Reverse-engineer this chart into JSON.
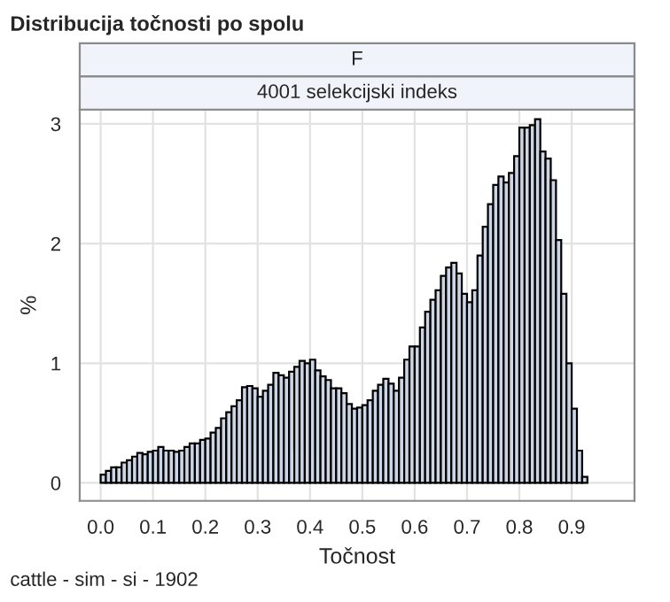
{
  "chart_data": {
    "type": "histogram",
    "title": "Distribucija točnosti po spolu",
    "xlabel": "Točnost",
    "ylabel": "%",
    "annotations": [
      "F",
      "4001 selekcijski indeks",
      "cattle - sim - si - 1902"
    ],
    "bins": [
      0.0,
      0.01,
      0.02,
      0.03,
      0.04,
      0.05,
      0.06,
      0.07,
      0.08,
      0.09,
      0.1,
      0.11,
      0.12,
      0.13,
      0.14,
      0.15,
      0.16,
      0.17,
      0.18,
      0.19,
      0.2,
      0.21,
      0.22,
      0.23,
      0.24,
      0.25,
      0.26,
      0.27,
      0.28,
      0.29,
      0.3,
      0.31,
      0.32,
      0.33,
      0.34,
      0.35,
      0.36,
      0.37,
      0.38,
      0.39,
      0.4,
      0.41,
      0.42,
      0.43,
      0.44,
      0.45,
      0.46,
      0.47,
      0.48,
      0.49,
      0.5,
      0.51,
      0.52,
      0.53,
      0.54,
      0.55,
      0.56,
      0.57,
      0.58,
      0.59,
      0.6,
      0.61,
      0.62,
      0.63,
      0.64,
      0.65,
      0.66,
      0.67,
      0.68,
      0.69,
      0.7,
      0.71,
      0.72,
      0.73,
      0.74,
      0.75,
      0.76,
      0.77,
      0.78,
      0.79,
      0.8,
      0.81,
      0.82,
      0.83,
      0.84,
      0.85,
      0.86,
      0.87,
      0.88,
      0.89,
      0.9,
      0.91,
      0.92,
      0.93
    ],
    "values": [
      0.07,
      0.1,
      0.13,
      0.13,
      0.17,
      0.19,
      0.22,
      0.25,
      0.24,
      0.26,
      0.27,
      0.3,
      0.27,
      0.27,
      0.26,
      0.27,
      0.3,
      0.33,
      0.33,
      0.36,
      0.37,
      0.42,
      0.46,
      0.54,
      0.59,
      0.64,
      0.69,
      0.8,
      0.81,
      0.79,
      0.72,
      0.77,
      0.82,
      0.92,
      0.9,
      0.88,
      0.93,
      0.97,
      1.02,
      1.0,
      1.03,
      0.94,
      0.89,
      0.86,
      0.79,
      0.79,
      0.75,
      0.66,
      0.62,
      0.63,
      0.65,
      0.69,
      0.77,
      0.82,
      0.87,
      0.83,
      0.77,
      0.88,
      1.03,
      1.14,
      1.14,
      1.3,
      1.43,
      1.53,
      1.61,
      1.73,
      1.8,
      1.84,
      1.75,
      1.58,
      1.51,
      1.61,
      1.9,
      2.14,
      2.33,
      2.49,
      2.56,
      2.51,
      2.59,
      2.73,
      2.97,
      2.97,
      2.99,
      3.04,
      2.77,
      2.71,
      2.53,
      2.03,
      1.58,
      1.0,
      0.62,
      0.27,
      0.05
    ],
    "color": "#cad5e5",
    "xlim": [
      -0.04,
      1.02
    ],
    "xticks": [
      {
        "value": 0.0,
        "label": "0.0"
      },
      {
        "value": 0.1,
        "label": "0.1"
      },
      {
        "value": 0.2,
        "label": "0.2"
      },
      {
        "value": 0.3,
        "label": "0.3"
      },
      {
        "value": 0.4,
        "label": "0.4"
      },
      {
        "value": 0.5,
        "label": "0.5"
      },
      {
        "value": 0.6,
        "label": "0.6"
      },
      {
        "value": 0.7,
        "label": "0.7"
      },
      {
        "value": 0.8,
        "label": "0.8"
      },
      {
        "value": 0.9,
        "label": "0.9"
      }
    ],
    "ylim": [
      -0.15,
      3.12
    ],
    "yticks": [
      0,
      1,
      2,
      3
    ],
    "grid": true
  }
}
